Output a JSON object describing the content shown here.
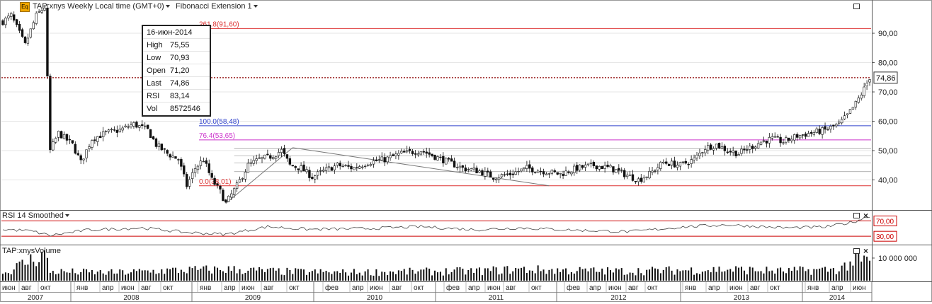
{
  "header": {
    "symbol_title": "TAP:xnys Weekly Local time (GMT+0)",
    "study_title": "Fibonacci Extension 1",
    "logo_text": "Eq"
  },
  "tooltip": {
    "date": "16-июн-2014",
    "rows": [
      {
        "label": "High",
        "value": "75,55"
      },
      {
        "label": "Low",
        "value": "70,93"
      },
      {
        "label": "Open",
        "value": "71,20"
      },
      {
        "label": "Last",
        "value": "74,86"
      },
      {
        "label": "RSI",
        "value": "83,14"
      },
      {
        "label": "Vol",
        "value": "8572546"
      }
    ]
  },
  "rsi_panel": {
    "title": "RSI 14 Smoothed",
    "level_upper": "70,00",
    "level_lower": "30,00",
    "upper": 70,
    "lower": 30
  },
  "volume_panel": {
    "title": "TAP:xnysVolume",
    "tick": "10 000 000",
    "tick_value": 10000000
  },
  "colors": {
    "price_line": "#8b0000",
    "rsi_band": "#cc0000",
    "candle_up": "#ffffff",
    "candle_down": "#111111",
    "fib_red": "#dd3333",
    "fib_blue": "#3344cc",
    "fib_magenta": "#cc33cc",
    "fib_teal": "#55aaaa"
  },
  "chart_data": {
    "type": "candlestick",
    "ylim": [
      30,
      97
    ],
    "y_ticks": [
      {
        "value": 40,
        "label": "40,00"
      },
      {
        "value": 50,
        "label": "50,00"
      },
      {
        "value": 60,
        "label": "60,00"
      },
      {
        "value": 70,
        "label": "70,00"
      },
      {
        "value": 80,
        "label": "80,00"
      },
      {
        "value": 90,
        "label": "90,00"
      }
    ],
    "last_price": {
      "value": 74.86,
      "label": "74,86"
    },
    "x_month_labels": [
      "июн",
      "авг",
      "окт",
      "янв",
      "апр",
      "июн",
      "авг",
      "окт",
      "янв",
      "апр",
      "июн",
      "авг",
      "окт",
      "фев",
      "апр",
      "июн",
      "авг",
      "окт",
      "фев",
      "апр",
      "июн",
      "авг",
      "окт",
      "фев",
      "апр",
      "июн",
      "авг",
      "окт",
      "янв",
      "апр",
      "июн",
      "авг",
      "окт",
      "янв",
      "апр",
      "июн"
    ],
    "x_year_labels": [
      "2007",
      "2008",
      "2009",
      "2010",
      "2011",
      "2012",
      "2013",
      "2014"
    ],
    "fib_levels": [
      {
        "ratio": "261.8",
        "value": 91.6,
        "label": "261.8(91,60)",
        "color": "#dd3333"
      },
      {
        "ratio": "100.0",
        "value": 58.48,
        "label": "100.0(58,48)",
        "color": "#3344cc"
      },
      {
        "ratio": "76.4",
        "value": 53.65,
        "label": "76.4(53,65)",
        "color": "#cc33cc"
      },
      {
        "ratio": "0.0",
        "value": 38.01,
        "label": "0.0(38,01)",
        "color": "#dd3333"
      }
    ],
    "price_path": [
      [
        0,
        94
      ],
      [
        3,
        96
      ],
      [
        8,
        86
      ],
      [
        12,
        96
      ],
      [
        15,
        99
      ],
      [
        17,
        50
      ],
      [
        20,
        56
      ],
      [
        25,
        52
      ],
      [
        28,
        46
      ],
      [
        32,
        54
      ],
      [
        37,
        56
      ],
      [
        42,
        57
      ],
      [
        47,
        59
      ],
      [
        52,
        57
      ],
      [
        55,
        52
      ],
      [
        59,
        49
      ],
      [
        63,
        47
      ],
      [
        66,
        38
      ],
      [
        69,
        44
      ],
      [
        72,
        47
      ],
      [
        75,
        40
      ],
      [
        78,
        36
      ],
      [
        80,
        32
      ],
      [
        84,
        38
      ],
      [
        88,
        45
      ],
      [
        92,
        47
      ],
      [
        96,
        48
      ],
      [
        100,
        50
      ],
      [
        103,
        45
      ],
      [
        107,
        44
      ],
      [
        111,
        41
      ],
      [
        115,
        43
      ],
      [
        120,
        45
      ],
      [
        126,
        44
      ],
      [
        131,
        46
      ],
      [
        137,
        47
      ],
      [
        143,
        49
      ],
      [
        150,
        50
      ],
      [
        155,
        48
      ],
      [
        160,
        46
      ],
      [
        165,
        44
      ],
      [
        171,
        43
      ],
      [
        176,
        41
      ],
      [
        182,
        42
      ],
      [
        188,
        44
      ],
      [
        194,
        43
      ],
      [
        200,
        42
      ],
      [
        206,
        44
      ],
      [
        212,
        45
      ],
      [
        218,
        44
      ],
      [
        223,
        42
      ],
      [
        228,
        40
      ],
      [
        232,
        42
      ],
      [
        237,
        46
      ],
      [
        243,
        45
      ],
      [
        248,
        47
      ],
      [
        252,
        51
      ],
      [
        256,
        52
      ],
      [
        260,
        50
      ],
      [
        264,
        49
      ],
      [
        268,
        51
      ],
      [
        272,
        53
      ],
      [
        276,
        54
      ],
      [
        280,
        53
      ],
      [
        285,
        55
      ],
      [
        290,
        56
      ],
      [
        295,
        57
      ],
      [
        300,
        59
      ],
      [
        303,
        62
      ],
      [
        306,
        66
      ],
      [
        309,
        71
      ],
      [
        311,
        75
      ]
    ],
    "volume_path": [
      [
        0,
        3
      ],
      [
        15,
        12
      ],
      [
        17,
        4
      ],
      [
        40,
        3.5
      ],
      [
        60,
        4.5
      ],
      [
        80,
        5
      ],
      [
        100,
        4
      ],
      [
        120,
        3.6
      ],
      [
        150,
        4
      ],
      [
        170,
        4.2
      ],
      [
        185,
        5
      ],
      [
        200,
        4.5
      ],
      [
        220,
        4.2
      ],
      [
        240,
        4.5
      ],
      [
        260,
        5
      ],
      [
        280,
        4.2
      ],
      [
        300,
        5
      ],
      [
        305,
        8.6
      ],
      [
        311,
        8.57
      ]
    ],
    "rsi_path": [
      [
        0,
        48
      ],
      [
        10,
        44
      ],
      [
        17,
        32
      ],
      [
        30,
        46
      ],
      [
        50,
        52
      ],
      [
        66,
        40
      ],
      [
        80,
        35
      ],
      [
        95,
        55
      ],
      [
        110,
        48
      ],
      [
        130,
        50
      ],
      [
        150,
        55
      ],
      [
        170,
        47
      ],
      [
        185,
        52
      ],
      [
        205,
        46
      ],
      [
        225,
        42
      ],
      [
        245,
        55
      ],
      [
        260,
        60
      ],
      [
        280,
        52
      ],
      [
        295,
        54
      ],
      [
        305,
        67
      ],
      [
        311,
        83.14
      ]
    ]
  }
}
